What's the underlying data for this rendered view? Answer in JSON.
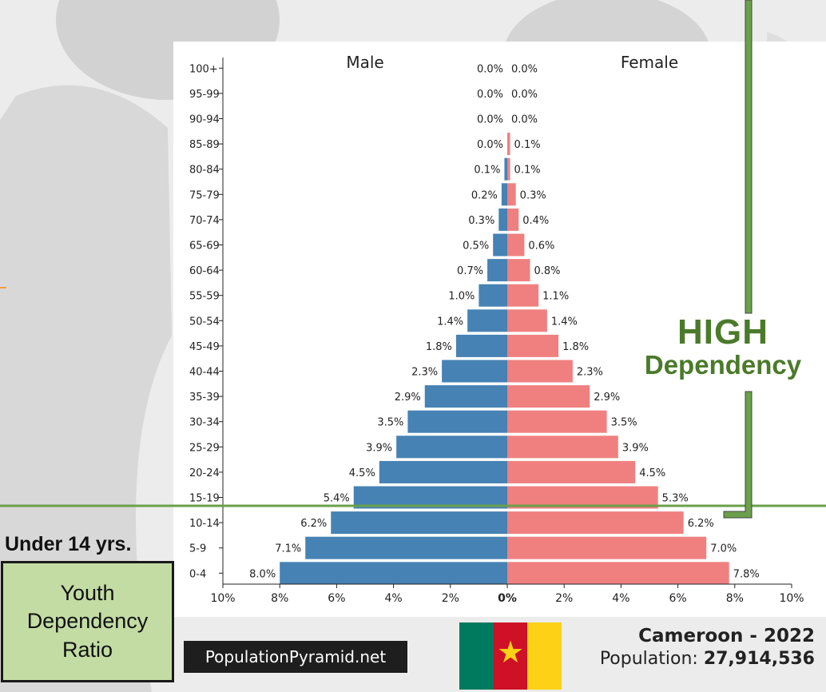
{
  "annotations": {
    "high_word": "HIGH",
    "dependency_word": "Dependency",
    "under_label": "Under 14 yrs.",
    "ratio_box_text": "Youth\nDependency\nRatio"
  },
  "footer": {
    "brand": "PopulationPyramid.net",
    "title": "Cameroon - 2022",
    "population_label": "Population:",
    "population_value": "27,914,536"
  },
  "flag_colors": [
    "#007a5e",
    "#ce1126",
    "#fcd116"
  ],
  "colors": {
    "male": "#4682b4",
    "female": "#f08080",
    "annotation_green": "#6aa04a",
    "ratio_box_fill": "#c3dca4"
  },
  "chart_data": {
    "type": "bar",
    "orientation": "horizontal",
    "left_title": "Male",
    "right_title": "Female",
    "categories": [
      "100+",
      "95-99",
      "90-94",
      "85-89",
      "80-84",
      "75-79",
      "70-74",
      "65-69",
      "60-64",
      "55-59",
      "50-54",
      "45-49",
      "40-44",
      "35-39",
      "30-34",
      "25-29",
      "20-24",
      "15-19",
      "10-14",
      "5-9",
      "0-4"
    ],
    "series": [
      {
        "name": "Male",
        "values": [
          0.0,
          0.0,
          0.0,
          0.0,
          0.1,
          0.2,
          0.3,
          0.5,
          0.7,
          1.0,
          1.4,
          1.8,
          2.3,
          2.9,
          3.5,
          3.9,
          4.5,
          5.4,
          6.2,
          7.1,
          8.0
        ],
        "labels": [
          "0.0%",
          "0.0%",
          "0.0%",
          "0.0%",
          "0.1%",
          "0.2%",
          "0.3%",
          "0.5%",
          "0.7%",
          "1.0%",
          "1.4%",
          "1.8%",
          "2.3%",
          "2.9%",
          "3.5%",
          "3.9%",
          "4.5%",
          "5.4%",
          "6.2%",
          "7.1%",
          "8.0%"
        ]
      },
      {
        "name": "Female",
        "values": [
          0.0,
          0.0,
          0.0,
          0.1,
          0.1,
          0.3,
          0.4,
          0.6,
          0.8,
          1.1,
          1.4,
          1.8,
          2.3,
          2.9,
          3.5,
          3.9,
          4.5,
          5.3,
          6.2,
          7.0,
          7.8
        ],
        "labels": [
          "0.0%",
          "0.0%",
          "0.0%",
          "0.1%",
          "0.1%",
          "0.3%",
          "0.4%",
          "0.6%",
          "0.8%",
          "1.1%",
          "1.4%",
          "1.8%",
          "2.3%",
          "2.9%",
          "3.5%",
          "3.9%",
          "4.5%",
          "5.3%",
          "6.2%",
          "7.0%",
          "7.8%"
        ]
      }
    ],
    "xlim": [
      -10,
      10
    ],
    "x_ticks": [
      "10%",
      "8%",
      "6%",
      "4%",
      "2%",
      "0%",
      "2%",
      "4%",
      "6%",
      "8%",
      "10%"
    ],
    "unit": "%"
  }
}
